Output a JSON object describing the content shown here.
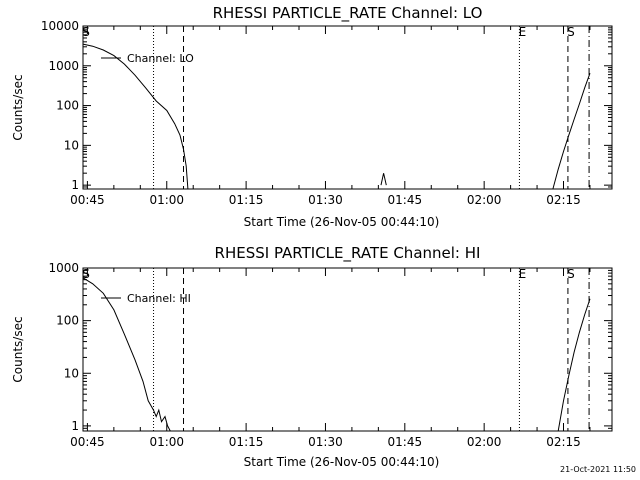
{
  "footer_stamp": "21-Oct-2021 11:50",
  "chart_data": [
    {
      "type": "line",
      "title": "RHESSI PARTICLE_RATE Channel: LO",
      "xlabel": "Start Time (26-Nov-05 00:44:10)",
      "ylabel": "Counts/sec",
      "y_scale": "log",
      "xlim": [
        "00:44:10",
        "02:24:10"
      ],
      "ylim": [
        0.8,
        10000
      ],
      "x_ticks": [
        "00:45",
        "01:00",
        "01:15",
        "01:30",
        "01:45",
        "02:00",
        "02:15"
      ],
      "y_ticks": [
        "1",
        "10",
        "100",
        "1000",
        "10000"
      ],
      "legend": "top-left",
      "series": [
        {
          "name": "Channel: LO",
          "x": [
            "00:44:10",
            "00:46:00",
            "00:48:00",
            "00:50:00",
            "00:52:00",
            "00:54:00",
            "00:56:00",
            "00:58:00",
            "01:00:00",
            "01:01:30",
            "01:02:30",
            "01:03:10",
            "01:03:40",
            "01:04:00",
            "01:40:30",
            "01:41:00",
            "01:41:30",
            "02:13:00",
            "02:14:00",
            "02:15:00",
            "02:16:00",
            "02:17:00",
            "02:18:00",
            "02:19:00",
            "02:20:00"
          ],
          "values": [
            3500,
            3100,
            2500,
            1800,
            1100,
            580,
            280,
            130,
            75,
            35,
            18,
            8,
            3,
            0.8,
            1,
            2,
            1,
            0.8,
            2.5,
            7,
            18,
            45,
            110,
            280,
            650
          ]
        }
      ],
      "markers": [
        {
          "label": "S",
          "time": "00:44:10",
          "style": "dashed"
        },
        {
          "label": "",
          "time": "00:57:30",
          "style": "dotted"
        },
        {
          "label": "",
          "time": "01:03:10",
          "style": "dashed"
        },
        {
          "label": "E",
          "time": "02:06:40",
          "style": "dotted"
        },
        {
          "label": "S",
          "time": "02:15:50",
          "style": "dashed"
        },
        {
          "label": "",
          "time": "02:19:50",
          "style": "dashdot"
        }
      ]
    },
    {
      "type": "line",
      "title": "RHESSI PARTICLE_RATE Channel: HI",
      "xlabel": "Start Time (26-Nov-05 00:44:10)",
      "ylabel": "Counts/sec",
      "y_scale": "log",
      "xlim": [
        "00:44:10",
        "02:24:10"
      ],
      "ylim": [
        0.8,
        1000
      ],
      "x_ticks": [
        "00:45",
        "01:00",
        "01:15",
        "01:30",
        "01:45",
        "02:00",
        "02:15"
      ],
      "y_ticks": [
        "1",
        "10",
        "100",
        "1000"
      ],
      "legend": "top-left",
      "series": [
        {
          "name": "Channel: HI",
          "x": [
            "00:44:10",
            "00:46:00",
            "00:48:00",
            "00:50:00",
            "00:52:00",
            "00:54:00",
            "00:55:30",
            "00:56:30",
            "00:57:30",
            "00:58:00",
            "00:58:30",
            "00:59:00",
            "00:59:40",
            "01:00:10",
            "01:00:40",
            "02:14:00",
            "02:15:00",
            "02:16:00",
            "02:17:00",
            "02:18:00",
            "02:19:00",
            "02:20:00"
          ],
          "values": [
            650,
            500,
            330,
            160,
            55,
            18,
            7,
            3,
            2,
            1.5,
            2,
            1.2,
            1.5,
            1,
            0.8,
            0.8,
            3,
            9,
            25,
            60,
            130,
            260
          ]
        }
      ],
      "markers": [
        {
          "label": "S",
          "time": "00:44:10",
          "style": "dashed"
        },
        {
          "label": "",
          "time": "00:57:30",
          "style": "dotted"
        },
        {
          "label": "",
          "time": "01:03:10",
          "style": "dashed"
        },
        {
          "label": "E",
          "time": "02:06:40",
          "style": "dotted"
        },
        {
          "label": "S",
          "time": "02:15:50",
          "style": "dashed"
        },
        {
          "label": "",
          "time": "02:19:50",
          "style": "dashdot"
        }
      ]
    }
  ]
}
